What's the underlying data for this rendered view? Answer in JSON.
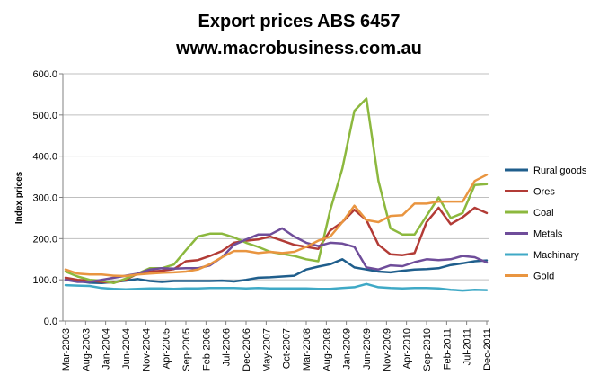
{
  "chart_data": {
    "type": "line",
    "title": "Export prices ABS 6457",
    "subtitle": "www.macrobusiness.com.au",
    "xlabel": "",
    "ylabel": "Index prices",
    "ylim": [
      0,
      600
    ],
    "yticks": [
      "0.0",
      "100.0",
      "200.0",
      "300.0",
      "400.0",
      "500.0",
      "600.0"
    ],
    "ytick_values": [
      0,
      100,
      200,
      300,
      400,
      500,
      600
    ],
    "grid": true,
    "legend": "right",
    "x": [
      "Mar-2003",
      "Jun-2003",
      "Sep-2003",
      "Dec-2003",
      "Mar-2004",
      "Jun-2004",
      "Sep-2004",
      "Dec-2004",
      "Mar-2005",
      "Jun-2005",
      "Sep-2005",
      "Dec-2005",
      "Mar-2006",
      "Jun-2006",
      "Sep-2006",
      "Dec-2006",
      "Mar-2007",
      "Jun-2007",
      "Sep-2007",
      "Dec-2007",
      "Mar-2008",
      "Jun-2008",
      "Sep-2008",
      "Dec-2008",
      "Mar-2009",
      "Jun-2009",
      "Sep-2009",
      "Dec-2009",
      "Mar-2010",
      "Jun-2010",
      "Sep-2010",
      "Dec-2010",
      "Mar-2011",
      "Jun-2011",
      "Sep-2011",
      "Dec-2011"
    ],
    "x_tick_labels": [
      {
        "index": 0,
        "label": "Mar-2003"
      },
      {
        "index": 1.67,
        "label": "Aug-2003"
      },
      {
        "index": 3.33,
        "label": "Jan-2004"
      },
      {
        "index": 5,
        "label": "Jun-2004"
      },
      {
        "index": 6.67,
        "label": "Nov-2004"
      },
      {
        "index": 8.33,
        "label": "Apr-2005"
      },
      {
        "index": 10,
        "label": "Sep-2005"
      },
      {
        "index": 11.67,
        "label": "Feb-2006"
      },
      {
        "index": 13.33,
        "label": "Jul-2006"
      },
      {
        "index": 15,
        "label": "Dec-2006"
      },
      {
        "index": 16.67,
        "label": "May-2007"
      },
      {
        "index": 18.33,
        "label": "Oct-2007"
      },
      {
        "index": 20,
        "label": "Mar-2008"
      },
      {
        "index": 21.67,
        "label": "Aug-2008"
      },
      {
        "index": 23.33,
        "label": "Jan-2009"
      },
      {
        "index": 25,
        "label": "Jun-2009"
      },
      {
        "index": 26.67,
        "label": "Nov-2009"
      },
      {
        "index": 28.33,
        "label": "Apr-2010"
      },
      {
        "index": 30,
        "label": "Sep-2010"
      },
      {
        "index": 31.67,
        "label": "Feb-2011"
      },
      {
        "index": 33.33,
        "label": "Jul-2011"
      },
      {
        "index": 35,
        "label": "Dec-2011"
      }
    ],
    "series": [
      {
        "name": "Rural goods",
        "color": "#1f5e8c",
        "values": [
          100,
          97,
          93,
          92,
          95,
          98,
          102,
          97,
          95,
          97,
          97,
          97,
          97,
          98,
          96,
          100,
          105,
          106,
          108,
          110,
          125,
          132,
          138,
          150,
          130,
          125,
          120,
          118,
          122,
          125,
          126,
          128,
          136,
          140,
          145,
          147
        ]
      },
      {
        "name": "Ores",
        "color": "#b23b36",
        "values": [
          105,
          100,
          98,
          95,
          93,
          100,
          115,
          120,
          122,
          126,
          145,
          148,
          158,
          170,
          190,
          195,
          198,
          205,
          195,
          185,
          180,
          175,
          220,
          240,
          270,
          245,
          185,
          162,
          160,
          165,
          240,
          275,
          235,
          252,
          275,
          262
        ]
      },
      {
        "name": "Coal",
        "color": "#8cb83e",
        "values": [
          120,
          108,
          100,
          98,
          92,
          103,
          115,
          128,
          128,
          137,
          172,
          205,
          212,
          212,
          203,
          190,
          180,
          168,
          163,
          158,
          150,
          145,
          270,
          370,
          510,
          540,
          340,
          225,
          210,
          210,
          255,
          300,
          250,
          262,
          330,
          332
        ]
      },
      {
        "name": "Metals",
        "color": "#6f4d9a",
        "values": [
          100,
          95,
          95,
          100,
          105,
          110,
          115,
          125,
          128,
          127,
          128,
          128,
          135,
          155,
          185,
          198,
          210,
          210,
          225,
          205,
          190,
          182,
          190,
          188,
          180,
          130,
          125,
          135,
          133,
          143,
          150,
          148,
          150,
          158,
          155,
          142
        ]
      },
      {
        "name": "Machinary",
        "color": "#3fa9c6",
        "values": [
          87,
          86,
          85,
          80,
          78,
          77,
          78,
          79,
          79,
          78,
          79,
          79,
          80,
          80,
          80,
          79,
          80,
          79,
          79,
          79,
          79,
          78,
          78,
          80,
          82,
          90,
          82,
          80,
          79,
          80,
          80,
          79,
          76,
          74,
          76,
          75
        ]
      },
      {
        "name": "Gold",
        "color": "#e99540",
        "values": [
          125,
          115,
          113,
          113,
          110,
          109,
          113,
          115,
          117,
          118,
          120,
          125,
          138,
          155,
          170,
          170,
          165,
          168,
          165,
          168,
          180,
          195,
          205,
          240,
          280,
          245,
          240,
          255,
          257,
          285,
          285,
          290,
          290,
          290,
          340,
          355
        ]
      }
    ]
  }
}
